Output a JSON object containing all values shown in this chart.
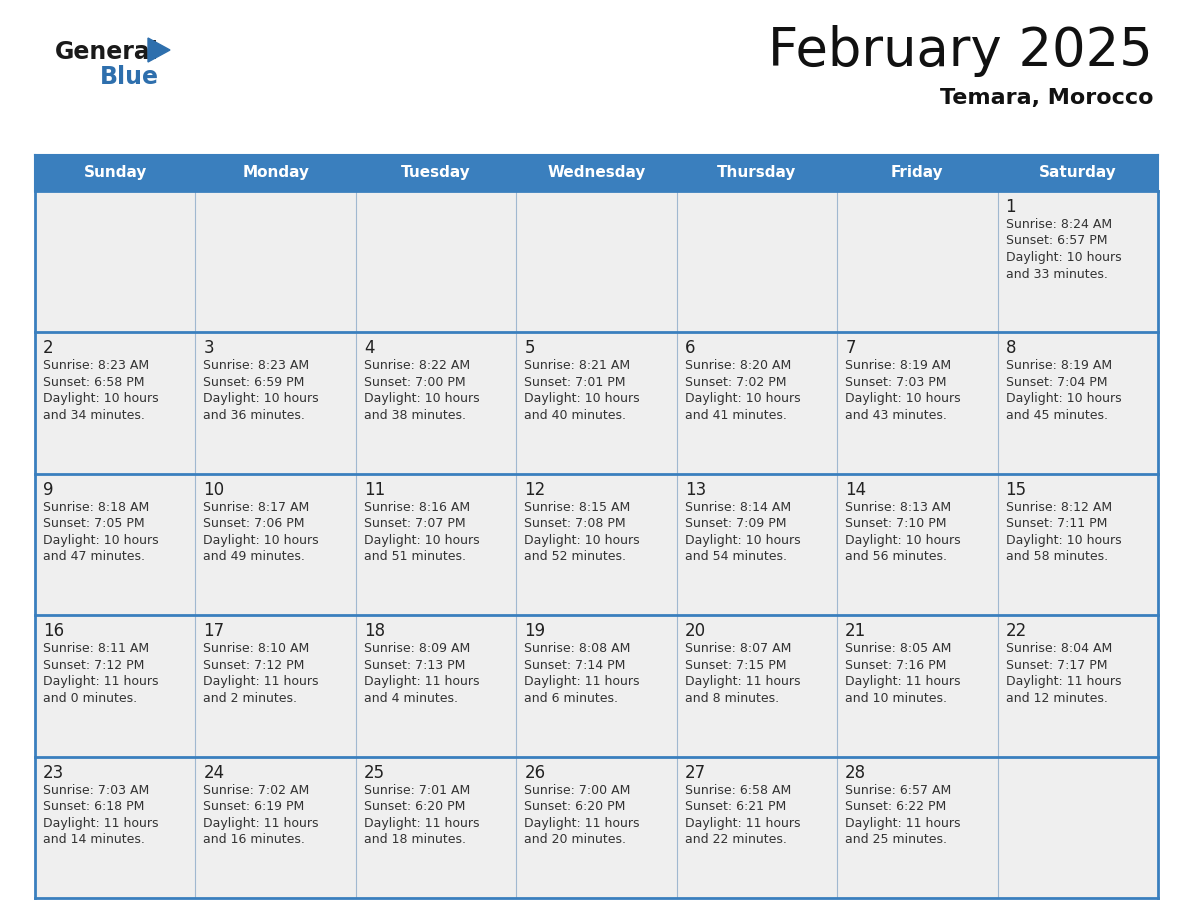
{
  "title": "February 2025",
  "subtitle": "Temara, Morocco",
  "header_bg_color": "#3a7fbe",
  "header_text_color": "#ffffff",
  "day_names": [
    "Sunday",
    "Monday",
    "Tuesday",
    "Wednesday",
    "Thursday",
    "Friday",
    "Saturday"
  ],
  "cell_bg_white": "#ffffff",
  "cell_bg_light": "#efefef",
  "border_color": "#3a7fbe",
  "border_thin_color": "#a0b8d0",
  "day_num_color": "#222222",
  "info_color": "#333333",
  "calendar": [
    [
      null,
      null,
      null,
      null,
      null,
      null,
      {
        "day": "1",
        "sunrise": "8:24 AM",
        "sunset": "6:57 PM",
        "daylight": "10 hours",
        "daylight2": "and 33 minutes."
      }
    ],
    [
      {
        "day": "2",
        "sunrise": "8:23 AM",
        "sunset": "6:58 PM",
        "daylight": "10 hours",
        "daylight2": "and 34 minutes."
      },
      {
        "day": "3",
        "sunrise": "8:23 AM",
        "sunset": "6:59 PM",
        "daylight": "10 hours",
        "daylight2": "and 36 minutes."
      },
      {
        "day": "4",
        "sunrise": "8:22 AM",
        "sunset": "7:00 PM",
        "daylight": "10 hours",
        "daylight2": "and 38 minutes."
      },
      {
        "day": "5",
        "sunrise": "8:21 AM",
        "sunset": "7:01 PM",
        "daylight": "10 hours",
        "daylight2": "and 40 minutes."
      },
      {
        "day": "6",
        "sunrise": "8:20 AM",
        "sunset": "7:02 PM",
        "daylight": "10 hours",
        "daylight2": "and 41 minutes."
      },
      {
        "day": "7",
        "sunrise": "8:19 AM",
        "sunset": "7:03 PM",
        "daylight": "10 hours",
        "daylight2": "and 43 minutes."
      },
      {
        "day": "8",
        "sunrise": "8:19 AM",
        "sunset": "7:04 PM",
        "daylight": "10 hours",
        "daylight2": "and 45 minutes."
      }
    ],
    [
      {
        "day": "9",
        "sunrise": "8:18 AM",
        "sunset": "7:05 PM",
        "daylight": "10 hours",
        "daylight2": "and 47 minutes."
      },
      {
        "day": "10",
        "sunrise": "8:17 AM",
        "sunset": "7:06 PM",
        "daylight": "10 hours",
        "daylight2": "and 49 minutes."
      },
      {
        "day": "11",
        "sunrise": "8:16 AM",
        "sunset": "7:07 PM",
        "daylight": "10 hours",
        "daylight2": "and 51 minutes."
      },
      {
        "day": "12",
        "sunrise": "8:15 AM",
        "sunset": "7:08 PM",
        "daylight": "10 hours",
        "daylight2": "and 52 minutes."
      },
      {
        "day": "13",
        "sunrise": "8:14 AM",
        "sunset": "7:09 PM",
        "daylight": "10 hours",
        "daylight2": "and 54 minutes."
      },
      {
        "day": "14",
        "sunrise": "8:13 AM",
        "sunset": "7:10 PM",
        "daylight": "10 hours",
        "daylight2": "and 56 minutes."
      },
      {
        "day": "15",
        "sunrise": "8:12 AM",
        "sunset": "7:11 PM",
        "daylight": "10 hours",
        "daylight2": "and 58 minutes."
      }
    ],
    [
      {
        "day": "16",
        "sunrise": "8:11 AM",
        "sunset": "7:12 PM",
        "daylight": "11 hours",
        "daylight2": "and 0 minutes."
      },
      {
        "day": "17",
        "sunrise": "8:10 AM",
        "sunset": "7:12 PM",
        "daylight": "11 hours",
        "daylight2": "and 2 minutes."
      },
      {
        "day": "18",
        "sunrise": "8:09 AM",
        "sunset": "7:13 PM",
        "daylight": "11 hours",
        "daylight2": "and 4 minutes."
      },
      {
        "day": "19",
        "sunrise": "8:08 AM",
        "sunset": "7:14 PM",
        "daylight": "11 hours",
        "daylight2": "and 6 minutes."
      },
      {
        "day": "20",
        "sunrise": "8:07 AM",
        "sunset": "7:15 PM",
        "daylight": "11 hours",
        "daylight2": "and 8 minutes."
      },
      {
        "day": "21",
        "sunrise": "8:05 AM",
        "sunset": "7:16 PM",
        "daylight": "11 hours",
        "daylight2": "and 10 minutes."
      },
      {
        "day": "22",
        "sunrise": "8:04 AM",
        "sunset": "7:17 PM",
        "daylight": "11 hours",
        "daylight2": "and 12 minutes."
      }
    ],
    [
      {
        "day": "23",
        "sunrise": "7:03 AM",
        "sunset": "6:18 PM",
        "daylight": "11 hours",
        "daylight2": "and 14 minutes."
      },
      {
        "day": "24",
        "sunrise": "7:02 AM",
        "sunset": "6:19 PM",
        "daylight": "11 hours",
        "daylight2": "and 16 minutes."
      },
      {
        "day": "25",
        "sunrise": "7:01 AM",
        "sunset": "6:20 PM",
        "daylight": "11 hours",
        "daylight2": "and 18 minutes."
      },
      {
        "day": "26",
        "sunrise": "7:00 AM",
        "sunset": "6:20 PM",
        "daylight": "11 hours",
        "daylight2": "and 20 minutes."
      },
      {
        "day": "27",
        "sunrise": "6:58 AM",
        "sunset": "6:21 PM",
        "daylight": "11 hours",
        "daylight2": "and 22 minutes."
      },
      {
        "day": "28",
        "sunrise": "6:57 AM",
        "sunset": "6:22 PM",
        "daylight": "11 hours",
        "daylight2": "and 25 minutes."
      },
      null
    ]
  ]
}
